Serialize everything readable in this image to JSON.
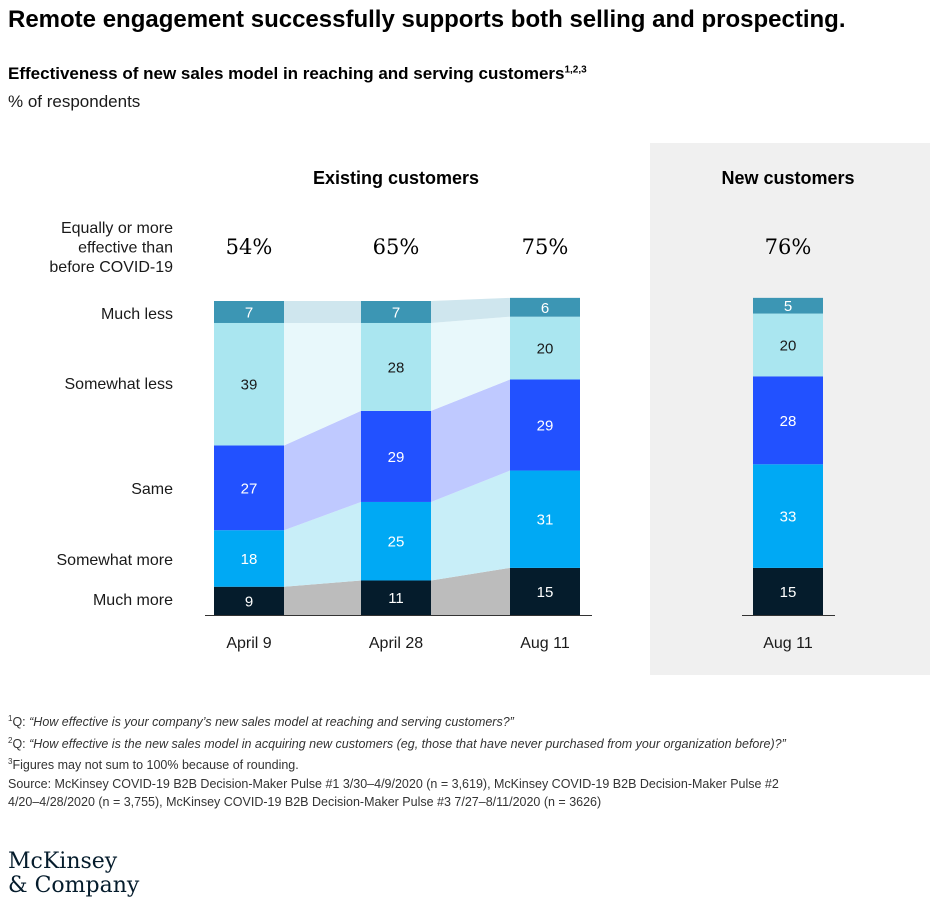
{
  "title": "Remote engagement successfully supports both selling and prospecting.",
  "subtitle": "Effectiveness of new sales model in reaching and serving customers",
  "subtitle_sup": "1,2,3",
  "unit": "% of respondents",
  "colors": {
    "much_less": "#3c96b4",
    "somewhat_less": "#aae6f0",
    "same": "#2251ff",
    "somewhat_more": "#00a9f4",
    "much_more": "#051c2c",
    "new_panel_bg": "#f0f0f0"
  },
  "chart_data": {
    "type": "bar",
    "stacked": true,
    "normalized": true,
    "title": "Effectiveness of new sales model in reaching and serving customers",
    "ylabel": "% of respondents",
    "row_label_header": "Equally or more effective than before COVID-19",
    "categories_order_bottom_to_top": [
      "Much more",
      "Somewhat more",
      "Same",
      "Somewhat less",
      "Much less"
    ],
    "groups": [
      {
        "name": "Existing customers",
        "bars": [
          {
            "label": "April 9",
            "total_label": "54%",
            "values": {
              "Much more": 9,
              "Somewhat more": 18,
              "Same": 27,
              "Somewhat less": 39,
              "Much less": 7
            }
          },
          {
            "label": "April 28",
            "total_label": "65%",
            "values": {
              "Much more": 11,
              "Somewhat more": 25,
              "Same": 29,
              "Somewhat less": 28,
              "Much less": 7
            }
          },
          {
            "label": "Aug 11",
            "total_label": "75%",
            "values": {
              "Much more": 15,
              "Somewhat more": 31,
              "Same": 29,
              "Somewhat less": 20,
              "Much less": 6
            }
          }
        ]
      },
      {
        "name": "New customers",
        "bars": [
          {
            "label": "Aug 11",
            "total_label": "76%",
            "values": {
              "Much more": 15,
              "Somewhat more": 33,
              "Same": 28,
              "Somewhat less": 20,
              "Much less": 5
            }
          }
        ]
      }
    ]
  },
  "footnotes": {
    "n1_mark": "1",
    "n1_prefix": "Q: ",
    "n1_text": "“How effective is your company’s new sales model at reaching and serving customers?”",
    "n2_mark": "2",
    "n2_prefix": "Q: ",
    "n2_text": "“How effective is the new sales model in acquiring new customers (eg, those that have never purchased from your organization before)?”",
    "n3_mark": "3",
    "n3_text": "Figures may not sum to 100% because of rounding.",
    "source_line1": "Source: McKinsey COVID-19 B2B Decision-Maker Pulse #1 3/30–4/9/2020 (n =  3,619), McKinsey COVID-19 B2B Decision-Maker Pulse #2",
    "source_line2": "4/20–4/28/2020 (n = 3,755), McKinsey COVID-19 B2B Decision-Maker Pulse #3 7/27–8/11/2020 (n = 3626)"
  },
  "logo": {
    "line1": "McKinsey",
    "line2": "& Company"
  }
}
